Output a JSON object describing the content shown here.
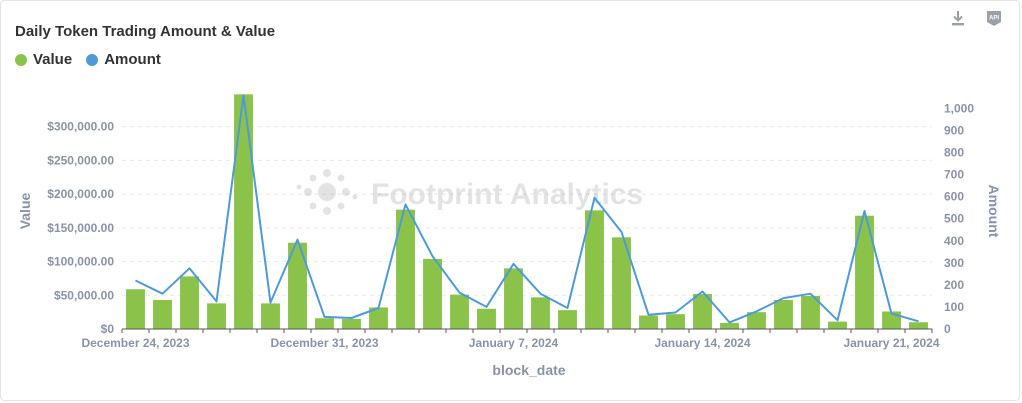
{
  "header": {
    "title": "Daily Token Trading Amount & Value",
    "download_icon": "download-icon",
    "api_icon": "api-icon",
    "api_text": "API"
  },
  "colors": {
    "value": "#8bc34a",
    "amount": "#4e9ad8",
    "axis_text": "#8a92a6",
    "grid": "#e8e8e8"
  },
  "watermark": {
    "text": "Footprint Analytics"
  },
  "chart_data": {
    "type": "bar",
    "title": "Daily Token Trading Amount & Value",
    "xlabel": "block_date",
    "ylabel": "Value",
    "y2label": "Amount",
    "x_tick_labels": [
      "December 24, 2023",
      "December 31, 2023",
      "January 7, 2024",
      "January 14, 2024",
      "January 21, 2024"
    ],
    "y_tick_labels": [
      "$0",
      "$50,000.00",
      "$100,000.00",
      "$150,000.00",
      "$200,000.00",
      "$250,000.00",
      "$300,000.00"
    ],
    "y2_tick_labels": [
      "0",
      "100",
      "200",
      "300",
      "400",
      "500",
      "600",
      "700",
      "800",
      "900",
      "1,000"
    ],
    "ylim": [
      0,
      350000
    ],
    "y2lim": [
      0,
      1070
    ],
    "categories": [
      "2023-12-24",
      "2023-12-25",
      "2023-12-26",
      "2023-12-27",
      "2023-12-28",
      "2023-12-29",
      "2023-12-30",
      "2023-12-31",
      "2024-01-01",
      "2024-01-02",
      "2024-01-03",
      "2024-01-04",
      "2024-01-05",
      "2024-01-06",
      "2024-01-07",
      "2024-01-08",
      "2024-01-09",
      "2024-01-10",
      "2024-01-11",
      "2024-01-12",
      "2024-01-13",
      "2024-01-14",
      "2024-01-15",
      "2024-01-16",
      "2024-01-17",
      "2024-01-18",
      "2024-01-19",
      "2024-01-20",
      "2024-01-21",
      "2024-01-22"
    ],
    "series": [
      {
        "name": "Value",
        "type": "bar",
        "axis": "left",
        "values": [
          59000,
          43000,
          78000,
          38000,
          348000,
          38000,
          128000,
          16000,
          15000,
          32000,
          177000,
          104000,
          51000,
          30000,
          90000,
          47000,
          28000,
          176000,
          136000,
          20000,
          22000,
          52000,
          9000,
          25000,
          43000,
          49000,
          11000,
          168000,
          26000,
          10000
        ]
      },
      {
        "name": "Amount",
        "type": "line",
        "axis": "right",
        "values": [
          220,
          160,
          275,
          125,
          1060,
          120,
          405,
          55,
          50,
          95,
          565,
          330,
          165,
          100,
          295,
          160,
          95,
          595,
          440,
          65,
          75,
          170,
          30,
          80,
          140,
          160,
          40,
          535,
          70,
          35
        ]
      }
    ],
    "grid": true,
    "legend_position": "top-left"
  }
}
